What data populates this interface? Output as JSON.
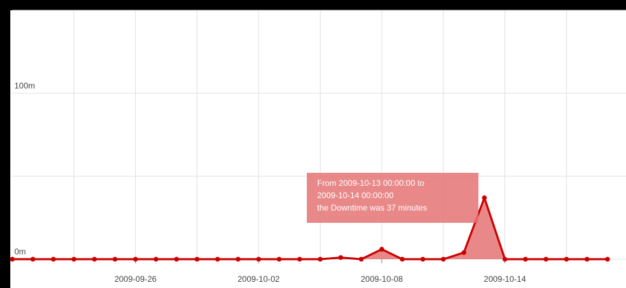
{
  "chart_data": {
    "type": "area",
    "x": [
      "2009-09-20",
      "2009-09-21",
      "2009-09-22",
      "2009-09-23",
      "2009-09-24",
      "2009-09-25",
      "2009-09-26",
      "2009-09-27",
      "2009-09-28",
      "2009-09-29",
      "2009-09-30",
      "2009-10-01",
      "2009-10-02",
      "2009-10-03",
      "2009-10-04",
      "2009-10-05",
      "2009-10-06",
      "2009-10-07",
      "2009-10-08",
      "2009-10-09",
      "2009-10-10",
      "2009-10-11",
      "2009-10-12",
      "2009-10-13",
      "2009-10-14",
      "2009-10-15",
      "2009-10-16",
      "2009-10-17",
      "2009-10-18",
      "2009-10-19"
    ],
    "series": [
      {
        "name": "Downtime",
        "color": "#cc0000",
        "values": [
          0,
          0,
          0,
          0,
          0,
          0,
          0,
          0,
          0,
          0,
          0,
          0,
          0,
          0,
          0,
          0,
          1,
          0,
          6,
          0,
          0,
          0,
          4,
          37,
          0,
          0,
          0,
          0,
          0,
          0
        ]
      }
    ],
    "ylim": [
      0,
      150
    ],
    "yticks": [
      {
        "value": 0,
        "label": "0m"
      },
      {
        "value": 50,
        "label": null
      },
      {
        "value": 100,
        "label": "100m"
      },
      {
        "value": 150,
        "label": null
      }
    ],
    "xticks": [
      "2009-09-26",
      "2009-10-02",
      "2009-10-08",
      "2009-10-14"
    ],
    "grid": true,
    "annotation": [
      "From 2009-10-13 00:00:00 to",
      "2009-10-14 00:00:00",
      "the Downtime was 37 minutes"
    ]
  }
}
